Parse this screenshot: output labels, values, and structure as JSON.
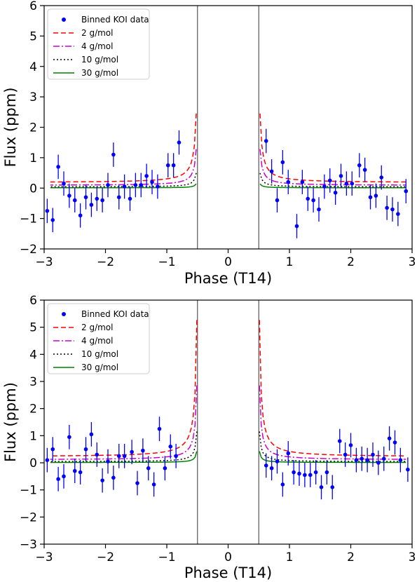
{
  "chart_data": [
    {
      "type": "scatter",
      "xlabel": "Phase (T14)",
      "ylabel": "Flux (ppm)",
      "xlim": [
        -3,
        3
      ],
      "ylim": [
        -2,
        6
      ],
      "xticks": [
        "−3",
        "−2",
        "−1",
        "0",
        "1",
        "2",
        "3"
      ],
      "yticks": [
        "−2",
        "−1",
        "0",
        "1",
        "2",
        "3",
        "4",
        "5",
        "6"
      ],
      "vlines": [
        -0.5,
        0.5
      ],
      "legend_position": "upper-left",
      "legend": [
        "Binned KOI data",
        "2 g/mol",
        "4 g/mol",
        "10 g/mol",
        "30 g/mol"
      ],
      "points": [
        {
          "x": -2.95,
          "y": -0.75,
          "err": 0.4
        },
        {
          "x": -2.86,
          "y": -1.05,
          "err": 0.4
        },
        {
          "x": -2.77,
          "y": 0.7,
          "err": 0.4
        },
        {
          "x": -2.68,
          "y": 0.15,
          "err": 0.4
        },
        {
          "x": -2.59,
          "y": -0.25,
          "err": 0.4
        },
        {
          "x": -2.5,
          "y": -0.4,
          "err": 0.4
        },
        {
          "x": -2.41,
          "y": -0.9,
          "err": 0.4
        },
        {
          "x": -2.32,
          "y": -0.3,
          "err": 0.4
        },
        {
          "x": -2.23,
          "y": -0.55,
          "err": 0.4
        },
        {
          "x": -2.14,
          "y": -0.35,
          "err": 0.4
        },
        {
          "x": -2.05,
          "y": -0.4,
          "err": 0.4
        },
        {
          "x": -1.96,
          "y": 0.1,
          "err": 0.4
        },
        {
          "x": -1.87,
          "y": 1.1,
          "err": 0.4
        },
        {
          "x": -1.78,
          "y": -0.3,
          "err": 0.4
        },
        {
          "x": -1.69,
          "y": 0.05,
          "err": 0.4
        },
        {
          "x": -1.6,
          "y": -0.35,
          "err": 0.4
        },
        {
          "x": -1.51,
          "y": 0.1,
          "err": 0.4
        },
        {
          "x": -1.42,
          "y": 0.1,
          "err": 0.4
        },
        {
          "x": -1.33,
          "y": 0.4,
          "err": 0.4
        },
        {
          "x": -1.24,
          "y": 0.2,
          "err": 0.4
        },
        {
          "x": -1.15,
          "y": 0.05,
          "err": 0.4
        },
        {
          "x": -0.98,
          "y": 0.75,
          "err": 0.4
        },
        {
          "x": -0.89,
          "y": 0.75,
          "err": 0.4
        },
        {
          "x": -0.8,
          "y": 1.5,
          "err": 0.4
        },
        {
          "x": 0.62,
          "y": 1.55,
          "err": 0.4
        },
        {
          "x": 0.71,
          "y": 0.55,
          "err": 0.4
        },
        {
          "x": 0.8,
          "y": -0.4,
          "err": 0.4
        },
        {
          "x": 0.89,
          "y": 0.85,
          "err": 0.4
        },
        {
          "x": 0.98,
          "y": 0.2,
          "err": 0.4
        },
        {
          "x": 1.12,
          "y": -1.25,
          "err": 0.4
        },
        {
          "x": 1.21,
          "y": 0.2,
          "err": 0.4
        },
        {
          "x": 1.3,
          "y": -0.35,
          "err": 0.4
        },
        {
          "x": 1.39,
          "y": -0.4,
          "err": 0.4
        },
        {
          "x": 1.48,
          "y": -0.7,
          "err": 0.4
        },
        {
          "x": 1.57,
          "y": 0.05,
          "err": 0.4
        },
        {
          "x": 1.66,
          "y": 0.25,
          "err": 0.4
        },
        {
          "x": 1.75,
          "y": -0.15,
          "err": 0.4
        },
        {
          "x": 1.84,
          "y": 0.4,
          "err": 0.4
        },
        {
          "x": 1.93,
          "y": 0.15,
          "err": 0.4
        },
        {
          "x": 2.02,
          "y": 0.15,
          "err": 0.4
        },
        {
          "x": 2.14,
          "y": 0.75,
          "err": 0.4
        },
        {
          "x": 2.23,
          "y": 0.6,
          "err": 0.4
        },
        {
          "x": 2.32,
          "y": -0.3,
          "err": 0.4
        },
        {
          "x": 2.41,
          "y": -0.25,
          "err": 0.4
        },
        {
          "x": 2.5,
          "y": 0.35,
          "err": 0.4
        },
        {
          "x": 2.59,
          "y": -0.65,
          "err": 0.4
        },
        {
          "x": 2.68,
          "y": -0.7,
          "err": 0.4
        },
        {
          "x": 2.77,
          "y": -0.85,
          "err": 0.4
        },
        {
          "x": 2.9,
          "y": -0.1,
          "err": 0.4
        }
      ],
      "series": [
        {
          "name": "2 g/mol",
          "color": "#ff0000",
          "dash": "dashed",
          "curve": {
            "base": 0.18,
            "scale": 0.21,
            "power": 2.8,
            "xmin": 0.52,
            "xmax": 2.9
          }
        },
        {
          "name": "4 g/mol",
          "color": "#cc00cc",
          "dash": "dashdot",
          "curve": {
            "base": 0.09,
            "scale": 0.11,
            "power": 2.8,
            "xmin": 0.52,
            "xmax": 2.9
          }
        },
        {
          "name": "10 g/mol",
          "color": "#000000",
          "dash": "dotted",
          "curve": {
            "base": 0.04,
            "scale": 0.042,
            "power": 2.8,
            "xmin": 0.52,
            "xmax": 2.9
          }
        },
        {
          "name": "30 g/mol",
          "color": "#008000",
          "dash": "solid",
          "curve": {
            "base": 0.01,
            "scale": 0.012,
            "power": 2.8,
            "xmin": 0.52,
            "xmax": 2.9
          }
        }
      ]
    },
    {
      "type": "scatter",
      "xlabel": "Phase (T14)",
      "ylabel": "Flux (ppm)",
      "xlim": [
        -3,
        3
      ],
      "ylim": [
        -3,
        6
      ],
      "xticks": [
        "−3",
        "−2",
        "−1",
        "0",
        "1",
        "2",
        "3"
      ],
      "yticks": [
        "−3",
        "−2",
        "−1",
        "0",
        "1",
        "2",
        "3",
        "4",
        "5",
        "6"
      ],
      "vlines": [
        -0.5,
        0.5
      ],
      "legend_position": "upper-left",
      "legend": [
        "Binned KOI data",
        "2 g/mol",
        "4 g/mol",
        "10 g/mol",
        "30 g/mol"
      ],
      "points": [
        {
          "x": -2.95,
          "y": 0.1,
          "err": 0.45
        },
        {
          "x": -2.86,
          "y": 0.5,
          "err": 0.45
        },
        {
          "x": -2.77,
          "y": -0.6,
          "err": 0.45
        },
        {
          "x": -2.68,
          "y": -0.5,
          "err": 0.45
        },
        {
          "x": -2.59,
          "y": 0.95,
          "err": 0.45
        },
        {
          "x": -2.5,
          "y": -0.3,
          "err": 0.45
        },
        {
          "x": -2.41,
          "y": -0.35,
          "err": 0.45
        },
        {
          "x": -2.32,
          "y": 0.5,
          "err": 0.45
        },
        {
          "x": -2.23,
          "y": 1.05,
          "err": 0.45
        },
        {
          "x": -2.14,
          "y": 0.3,
          "err": 0.45
        },
        {
          "x": -2.05,
          "y": -0.65,
          "err": 0.45
        },
        {
          "x": -1.96,
          "y": 0.05,
          "err": 0.45
        },
        {
          "x": -1.87,
          "y": -0.55,
          "err": 0.45
        },
        {
          "x": -1.78,
          "y": 0.25,
          "err": 0.45
        },
        {
          "x": -1.69,
          "y": 0.25,
          "err": 0.45
        },
        {
          "x": -1.57,
          "y": 0.4,
          "err": 0.45
        },
        {
          "x": -1.48,
          "y": -0.75,
          "err": 0.45
        },
        {
          "x": -1.39,
          "y": 0.45,
          "err": 0.45
        },
        {
          "x": -1.3,
          "y": -0.2,
          "err": 0.45
        },
        {
          "x": -1.21,
          "y": -0.8,
          "err": 0.45
        },
        {
          "x": -1.12,
          "y": 1.25,
          "err": 0.45
        },
        {
          "x": -1.03,
          "y": -0.2,
          "err": 0.45
        },
        {
          "x": -0.94,
          "y": 0.6,
          "err": 0.45
        },
        {
          "x": -0.85,
          "y": 0.25,
          "err": 0.45
        },
        {
          "x": 0.62,
          "y": -0.1,
          "err": 0.45
        },
        {
          "x": 0.71,
          "y": -0.2,
          "err": 0.45
        },
        {
          "x": 0.8,
          "y": 0.05,
          "err": 0.45
        },
        {
          "x": 0.89,
          "y": -0.8,
          "err": 0.45
        },
        {
          "x": 0.98,
          "y": 0.35,
          "err": 0.45
        },
        {
          "x": 1.07,
          "y": -0.35,
          "err": 0.45
        },
        {
          "x": 1.16,
          "y": -0.4,
          "err": 0.45
        },
        {
          "x": 1.25,
          "y": -0.45,
          "err": 0.45
        },
        {
          "x": 1.34,
          "y": -0.45,
          "err": 0.45
        },
        {
          "x": 1.43,
          "y": -0.35,
          "err": 0.45
        },
        {
          "x": 1.52,
          "y": -0.9,
          "err": 0.45
        },
        {
          "x": 1.61,
          "y": -0.35,
          "err": 0.45
        },
        {
          "x": 1.7,
          "y": -0.9,
          "err": 0.45
        },
        {
          "x": 1.82,
          "y": 0.8,
          "err": 0.45
        },
        {
          "x": 1.91,
          "y": 0.3,
          "err": 0.45
        },
        {
          "x": 2.0,
          "y": 0.65,
          "err": 0.45
        },
        {
          "x": 2.09,
          "y": 0.1,
          "err": 0.45
        },
        {
          "x": 2.18,
          "y": 0.15,
          "err": 0.45
        },
        {
          "x": 2.27,
          "y": 0.1,
          "err": 0.45
        },
        {
          "x": 2.36,
          "y": 0.3,
          "err": 0.45
        },
        {
          "x": 2.45,
          "y": 0.0,
          "err": 0.45
        },
        {
          "x": 2.54,
          "y": 0.15,
          "err": 0.45
        },
        {
          "x": 2.63,
          "y": 0.9,
          "err": 0.45
        },
        {
          "x": 2.72,
          "y": 0.75,
          "err": 0.45
        },
        {
          "x": 2.81,
          "y": 0.1,
          "err": 0.45
        },
        {
          "x": 2.93,
          "y": -0.25,
          "err": 0.45
        }
      ],
      "series": [
        {
          "name": "2 g/mol",
          "color": "#ff0000",
          "dash": "dashed",
          "curve": {
            "base": 0.22,
            "scale": 0.34,
            "power": 2.8,
            "xmin": 0.51,
            "xmax": 2.9
          }
        },
        {
          "name": "4 g/mol",
          "color": "#cc00cc",
          "dash": "dashdot",
          "curve": {
            "base": 0.11,
            "scale": 0.185,
            "power": 2.8,
            "xmin": 0.51,
            "xmax": 2.9
          }
        },
        {
          "name": "10 g/mol",
          "color": "#000000",
          "dash": "dotted",
          "curve": {
            "base": 0.04,
            "scale": 0.075,
            "power": 2.8,
            "xmin": 0.51,
            "xmax": 2.9
          }
        },
        {
          "name": "30 g/mol",
          "color": "#008000",
          "dash": "solid",
          "curve": {
            "base": 0.01,
            "scale": 0.028,
            "power": 2.8,
            "xmin": 0.51,
            "xmax": 2.9
          }
        }
      ]
    }
  ]
}
